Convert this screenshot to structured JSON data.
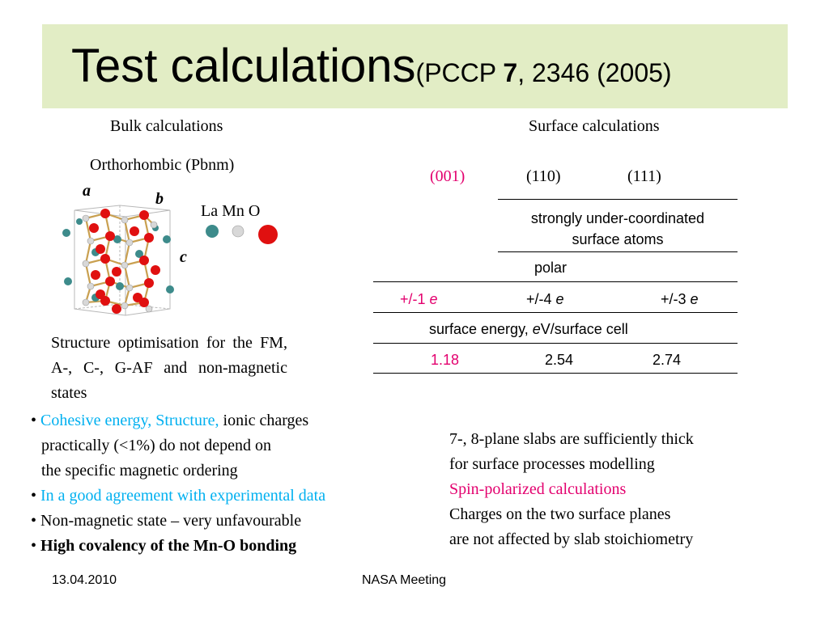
{
  "title": {
    "main": "Test calculations",
    "ref_open": "(PCCP ",
    "ref_volume": "7",
    "ref_rest": ", 2346 (2005)"
  },
  "bulk": {
    "header": "Bulk calculations",
    "structure_label": "Orthorhombic (Pbnm)",
    "axis_a": "a",
    "axis_b": "b",
    "axis_c": "c",
    "legend_text": "La Mn O",
    "legend_colors": [
      "#3d8b8b",
      "#d8d8d8",
      "#e01010"
    ],
    "note": "Structure optimisation for the FM, A-, C-, G-AF and non-magnetic states"
  },
  "surface": {
    "header": "Surface calculations",
    "planes": [
      "(001)",
      "(110)",
      "(111)"
    ],
    "row1_line1": "strongly under-coordinated",
    "row1_line2": "surface atoms",
    "row2": "polar",
    "charges": [
      {
        "prefix": "+/-1 ",
        "unit": "e"
      },
      {
        "prefix": "+/-4 ",
        "unit": "e"
      },
      {
        "prefix": "+/-3 ",
        "unit": "e"
      }
    ],
    "energy_label_a": "surface energy, ",
    "energy_label_unit": "e",
    "energy_label_b": "V/surface cell",
    "energies": [
      "1.18",
      "2.54",
      "2.74"
    ]
  },
  "left_bullets": {
    "b1_highlight": "Cohesive energy, Structure,",
    "b1_rest": " ionic charges",
    "b1_line2": "practically (<1%)  do not depend on",
    "b1_line3": "the specific magnetic ordering",
    "b2": "In a good agreement with experimental data",
    "b3": "Non-magnetic state – very unfavourable",
    "b4": "High covalency of the Mn-O bonding"
  },
  "right_notes": {
    "line1": "7-, 8-plane slabs are sufficiently thick",
    "line2": "for surface processes modelling",
    "line3": "Spin-polarized calculations",
    "line4": "Charges on the two surface planes",
    "line5": "are not affected by slab stoichiometry"
  },
  "footer": {
    "date": "13.04.2010",
    "event": "NASA Meeting"
  },
  "colors": {
    "title_bar": "#e2edc5",
    "accent_pink": "#e3006e",
    "accent_cyan": "#00b0f0"
  }
}
